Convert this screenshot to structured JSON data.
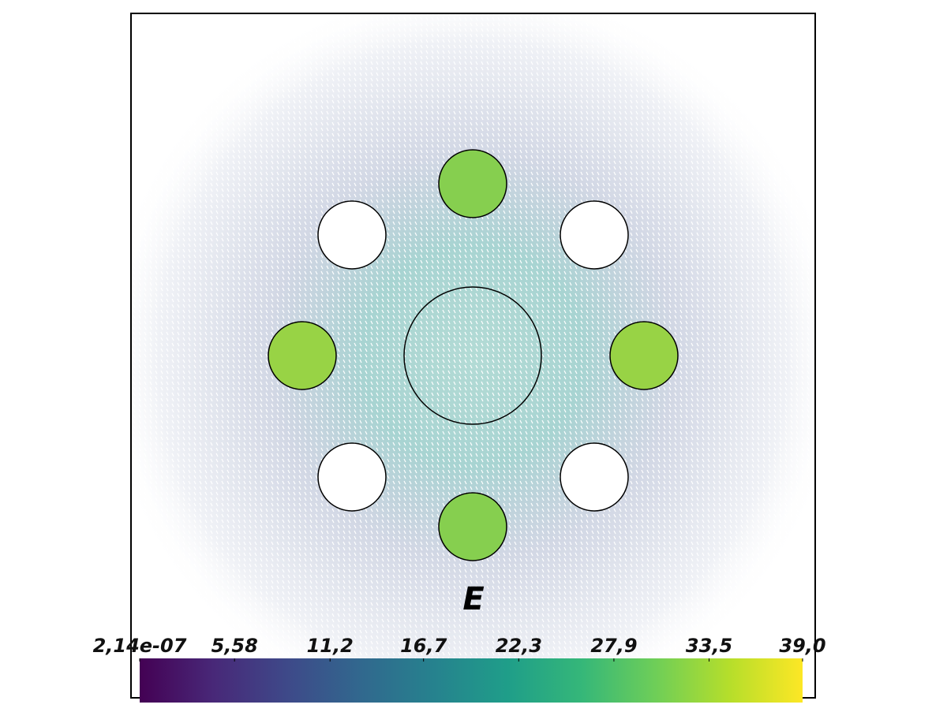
{
  "chart_data": {
    "type": "vector-field",
    "title": "E",
    "colormap": "viridis",
    "clim": [
      2.14e-07,
      39.0
    ],
    "colorbar_ticks": [
      {
        "value": 2.14e-07,
        "label": "2,14e-07"
      },
      {
        "value": 5.58,
        "label": "5,58"
      },
      {
        "value": 11.2,
        "label": "11,2"
      },
      {
        "value": 16.7,
        "label": "16,7"
      },
      {
        "value": 22.3,
        "label": "22,3"
      },
      {
        "value": 27.9,
        "label": "27,9"
      },
      {
        "value": 33.5,
        "label": "33,5"
      },
      {
        "value": 39.0,
        "label": "39,0"
      }
    ]
  }
}
